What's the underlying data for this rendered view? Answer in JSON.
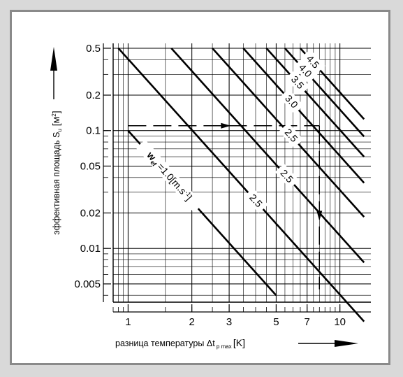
{
  "chart_data": {
    "type": "line",
    "title": "",
    "x_scale": "log",
    "y_scale": "log",
    "xlim": [
      0.85,
      14
    ],
    "ylim": [
      0.0035,
      0.55
    ],
    "x_ticks": [
      {
        "value": 1,
        "label": "1"
      },
      {
        "value": 2,
        "label": "2"
      },
      {
        "value": 3,
        "label": "3"
      },
      {
        "value": 5,
        "label": "5"
      },
      {
        "value": 7,
        "label": "7"
      },
      {
        "value": 10,
        "label": "10"
      }
    ],
    "y_ticks": [
      {
        "value": 0.5,
        "label": "0.5"
      },
      {
        "value": 0.2,
        "label": "0.2"
      },
      {
        "value": 0.1,
        "label": "0.1"
      },
      {
        "value": 0.05,
        "label": "0.05"
      },
      {
        "value": 0.02,
        "label": "0.02"
      },
      {
        "value": 0.01,
        "label": "0.01"
      },
      {
        "value": 0.005,
        "label": "0.005"
      }
    ],
    "xlabel_parts": {
      "text": "разница температуры",
      "symbol": "Δt",
      "subscript": "p max",
      "unit": "[K]"
    },
    "ylabel_parts": {
      "text": "эффективная площадь S",
      "subscript": "u",
      "unit_open": "[м",
      "unit_sup": "2",
      "unit_close": "]"
    },
    "grid": true,
    "series": [
      {
        "name": "1.0",
        "x": [
          1,
          5
        ],
        "y": [
          0.1,
          0.004
        ]
      },
      {
        "name": "2.5",
        "x": [
          0.9,
          13
        ],
        "y": [
          0.5,
          0.0024
        ]
      },
      {
        "name": "2.5",
        "x": [
          1.6,
          13
        ],
        "y": [
          0.5,
          0.0076
        ]
      },
      {
        "name": "2.5",
        "x": [
          2.5,
          13
        ],
        "y": [
          0.5,
          0.0185
        ]
      },
      {
        "name": "3.0",
        "x": [
          3.5,
          13
        ],
        "y": [
          0.5,
          0.036
        ]
      },
      {
        "name": "3.5",
        "x": [
          4.5,
          13
        ],
        "y": [
          0.5,
          0.06
        ]
      },
      {
        "name": "4.0",
        "x": [
          5.5,
          13
        ],
        "y": [
          0.5,
          0.089
        ]
      },
      {
        "name": "4.5",
        "x": [
          6.5,
          13
        ],
        "y": [
          0.5,
          0.125
        ]
      }
    ],
    "annotations": [
      {
        "text": "1.0",
        "prefix": "w",
        "prefix_sub": "ef",
        "eq": "=",
        "unit_open": "[m.s",
        "unit_sup": "-1",
        "unit_close": "]",
        "series": 0
      },
      {
        "text": "2.5",
        "series": 1
      },
      {
        "text": "2.5",
        "series": 2
      },
      {
        "text": "2.5",
        "series": 3
      },
      {
        "text": "3.0",
        "series": 4
      },
      {
        "text": "3.5",
        "series": 5
      },
      {
        "text": "4.0",
        "series": 6
      },
      {
        "text": "4.5",
        "series": 7
      }
    ],
    "example_path": {
      "start": [
        1,
        0.11
      ],
      "corner": [
        8,
        0.11
      ],
      "end": [
        8,
        0.0045
      ]
    }
  }
}
